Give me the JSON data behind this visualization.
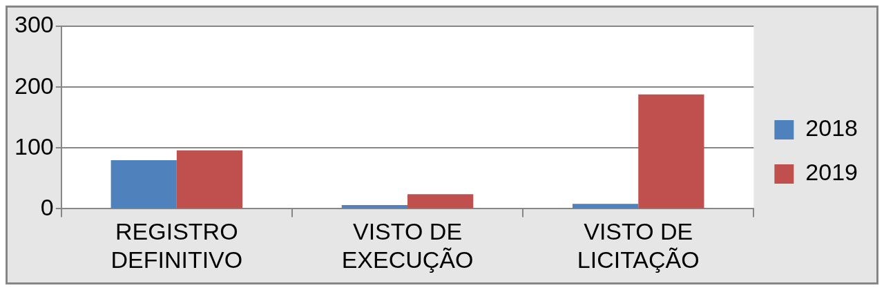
{
  "chart_data": {
    "type": "bar",
    "categories": [
      "REGISTRO DEFINITIVO",
      "VISTO DE EXECUÇÃO",
      "VISTO DE LICITAÇÃO"
    ],
    "series": [
      {
        "name": "2018",
        "color": "#4f81bd",
        "values": [
          80,
          6,
          8
        ]
      },
      {
        "name": "2019",
        "color": "#c0504d",
        "values": [
          96,
          24,
          188
        ]
      }
    ],
    "ylim": [
      0,
      300
    ],
    "yticks": [
      0,
      100,
      200,
      300
    ],
    "grid": "y",
    "legend": "right"
  }
}
